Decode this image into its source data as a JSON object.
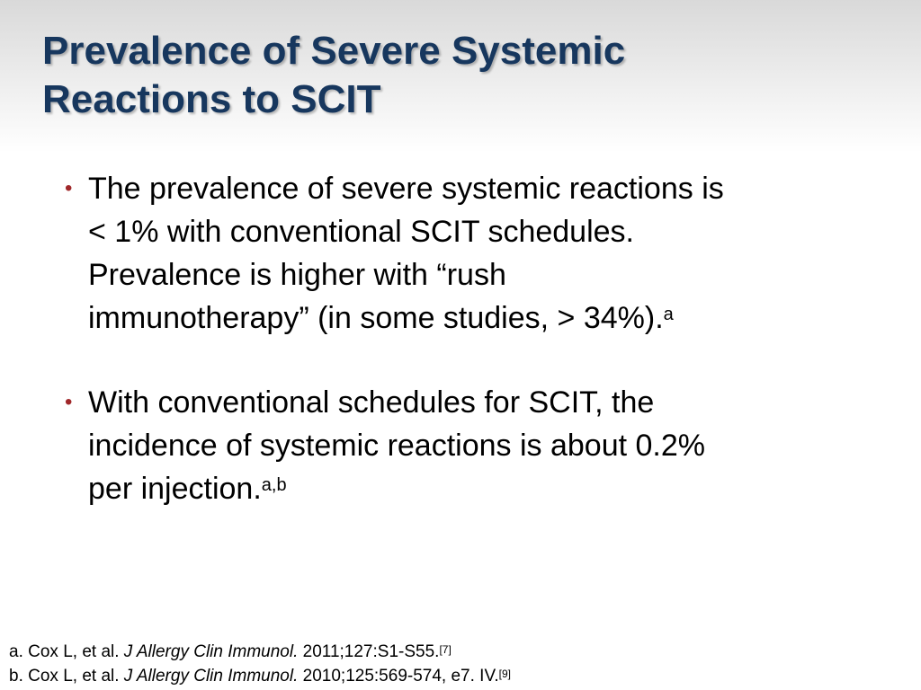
{
  "title": {
    "lines": [
      "Prevalence of Severe Systemic",
      "Reactions to SCIT"
    ]
  },
  "bullets": [
    {
      "lines": [
        "The prevalence of severe systemic reactions is",
        "< 1% with conventional SCIT schedules.",
        "Prevalence is higher with “rush",
        "immunotherapy” (in some studies, > 34%)."
      ],
      "sup": "a"
    },
    {
      "lines": [
        "With conventional schedules for SCIT, the",
        "incidence of systemic reactions is about 0.2%",
        "per injection."
      ],
      "sup": "a,b"
    }
  ],
  "references": [
    {
      "prefix": "a. Cox L, et al.",
      "journal": "J Allergy Clin Immunol.",
      "citation": "2011;127:S1-S55.",
      "sup": "[7]"
    },
    {
      "prefix": "b. Cox L, et al.",
      "journal": "J Allergy Clin Immunol.",
      "citation": "2010;125:569-574, e7. IV.",
      "sup": "[9]"
    }
  ]
}
